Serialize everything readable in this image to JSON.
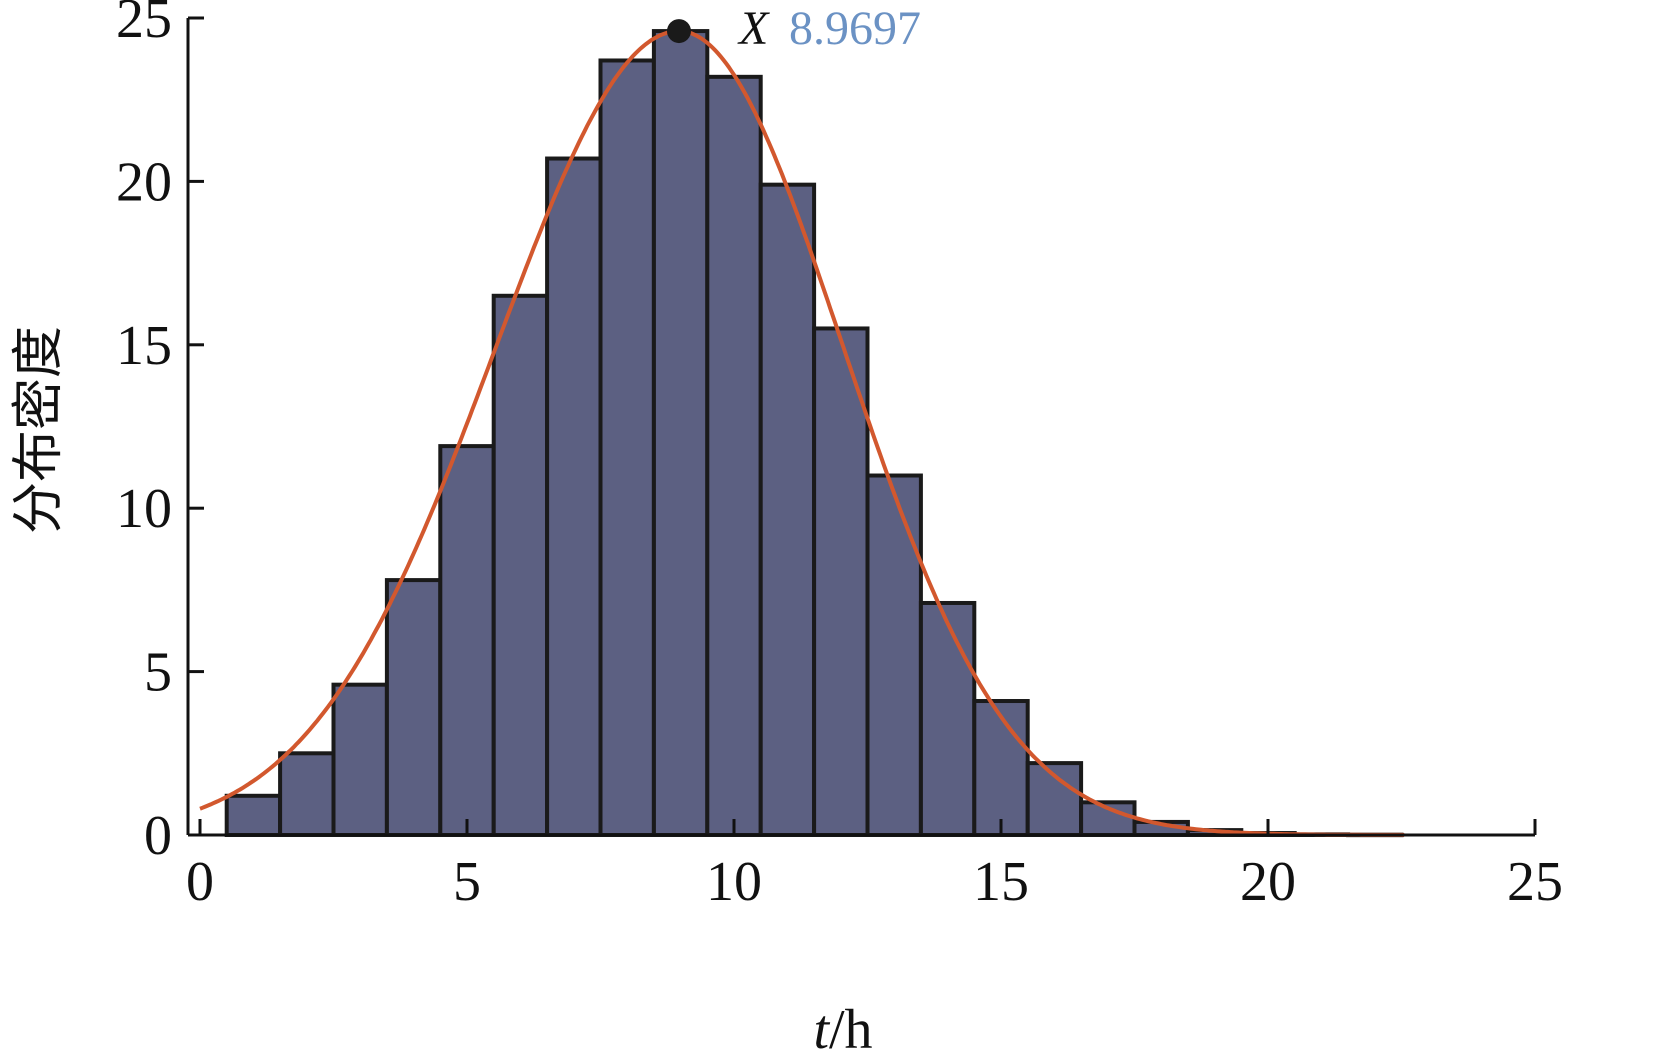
{
  "chart_data": {
    "type": "bar",
    "xlabel_italic": "t",
    "xlabel_rest": "/h",
    "ylabel": "分布密度",
    "xlim": [
      0,
      25
    ],
    "ylim": [
      0,
      25
    ],
    "xticks": [
      "0",
      "5",
      "10",
      "15",
      "20",
      "25"
    ],
    "yticks": [
      "0",
      "5",
      "10",
      "15",
      "20",
      "25"
    ],
    "bins": [
      {
        "x0": 0.5,
        "x1": 1.5,
        "value": 1.2
      },
      {
        "x0": 1.5,
        "x1": 2.5,
        "value": 2.5
      },
      {
        "x0": 2.5,
        "x1": 3.5,
        "value": 4.6
      },
      {
        "x0": 3.5,
        "x1": 4.5,
        "value": 7.8
      },
      {
        "x0": 4.5,
        "x1": 5.5,
        "value": 11.9
      },
      {
        "x0": 5.5,
        "x1": 6.5,
        "value": 16.5
      },
      {
        "x0": 6.5,
        "x1": 7.5,
        "value": 20.7
      },
      {
        "x0": 7.5,
        "x1": 8.5,
        "value": 23.7
      },
      {
        "x0": 8.5,
        "x1": 9.5,
        "value": 24.6
      },
      {
        "x0": 9.5,
        "x1": 10.5,
        "value": 23.2
      },
      {
        "x0": 10.5,
        "x1": 11.5,
        "value": 19.9
      },
      {
        "x0": 11.5,
        "x1": 12.5,
        "value": 15.5
      },
      {
        "x0": 12.5,
        "x1": 13.5,
        "value": 11.0
      },
      {
        "x0": 13.5,
        "x1": 14.5,
        "value": 7.1
      },
      {
        "x0": 14.5,
        "x1": 15.5,
        "value": 4.1
      },
      {
        "x0": 15.5,
        "x1": 16.5,
        "value": 2.2
      },
      {
        "x0": 16.5,
        "x1": 17.5,
        "value": 1.0
      },
      {
        "x0": 17.5,
        "x1": 18.5,
        "value": 0.4
      },
      {
        "x0": 18.5,
        "x1": 19.5,
        "value": 0.15
      },
      {
        "x0": 19.5,
        "x1": 20.5,
        "value": 0.06
      },
      {
        "x0": 20.5,
        "x1": 21.5,
        "value": 0.02
      },
      {
        "x0": 21.5,
        "x1": 22.5,
        "value": 0.01
      }
    ],
    "fit_curve": {
      "peak_x": 8.9697,
      "peak_y": 24.6,
      "sigma_left": 3.43,
      "sigma_right": 3.08
    },
    "peak": {
      "x": 8.9697,
      "y": 24.6,
      "symbol": "X",
      "label": "8.9697"
    },
    "colors": {
      "bar_fill": "#5c6082",
      "bar_edge": "#1a1a1a",
      "curve": "#d2582e",
      "peak_label": "#6b92c4",
      "point": "#1a1a1a"
    }
  }
}
